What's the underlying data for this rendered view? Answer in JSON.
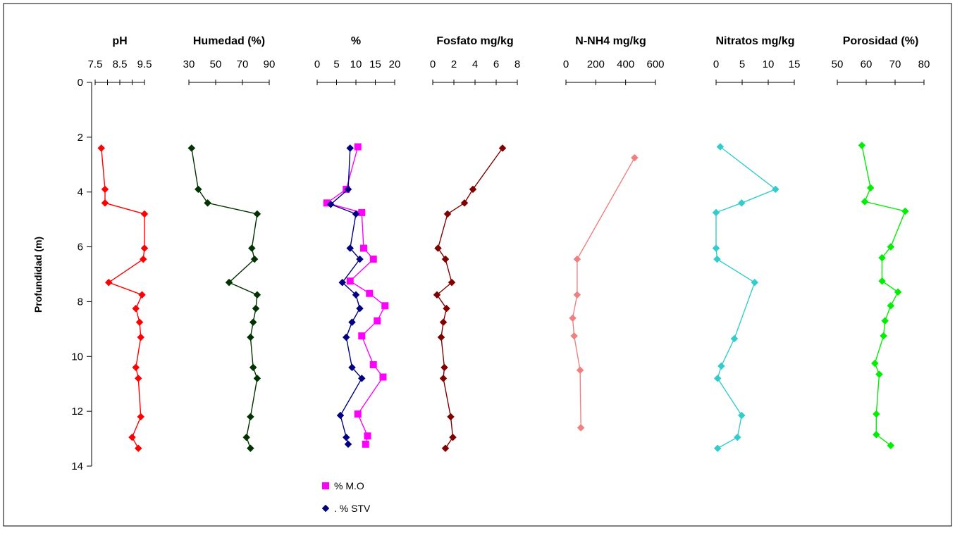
{
  "chart_data": {
    "type": "line",
    "y_axis": {
      "label": "Profundidad (m)",
      "ticks": [
        "0",
        "2",
        "4",
        "6",
        "8",
        "10",
        "12",
        "14"
      ],
      "ylim": [
        0,
        14
      ],
      "inverted": true
    },
    "legend": {
      "position": "bottom-center",
      "items": [
        {
          "label": "% M.O",
          "color": "#FF00FF",
          "marker": "square"
        },
        {
          "label": ". % STV",
          "color": "#000080",
          "marker": "diamond"
        }
      ]
    },
    "panels": [
      {
        "title": "pH",
        "xlim": [
          7.5,
          9.5
        ],
        "tick_values": [
          7.5,
          8.5,
          9.5
        ],
        "tick_labels": [
          "7.5",
          "8.5",
          "9.5"
        ],
        "tick_positions": [
          7.5,
          8.0,
          8.5,
          9.0,
          9.5
        ],
        "series": [
          {
            "color": "#FF0000",
            "marker": "diamond",
            "points": [
              [
                7.75,
                2.4
              ],
              [
                7.9,
                3.9
              ],
              [
                7.9,
                4.4
              ],
              [
                9.5,
                4.8
              ],
              [
                9.5,
                6.05
              ],
              [
                9.45,
                6.45
              ],
              [
                8.05,
                7.3
              ],
              [
                9.4,
                7.75
              ],
              [
                9.15,
                8.25
              ],
              [
                9.3,
                8.75
              ],
              [
                9.35,
                9.3
              ],
              [
                9.15,
                10.4
              ],
              [
                9.25,
                10.8
              ],
              [
                9.35,
                12.2
              ],
              [
                9.0,
                12.95
              ],
              [
                9.25,
                13.35
              ]
            ]
          }
        ]
      },
      {
        "title": "Humedad (%)",
        "xlim": [
          30,
          90
        ],
        "tick_values": [
          30,
          50,
          70,
          90
        ],
        "tick_labels": [
          "30",
          "50",
          "70",
          "90"
        ],
        "tick_positions": [
          30,
          50,
          70,
          90
        ],
        "series": [
          {
            "color": "#003300",
            "marker": "diamond",
            "points": [
              [
                32,
                2.4
              ],
              [
                37,
                3.9
              ],
              [
                44,
                4.4
              ],
              [
                81,
                4.8
              ],
              [
                77,
                6.05
              ],
              [
                79,
                6.45
              ],
              [
                60,
                7.3
              ],
              [
                81,
                7.75
              ],
              [
                80,
                8.25
              ],
              [
                78,
                8.75
              ],
              [
                76,
                9.3
              ],
              [
                78,
                10.4
              ],
              [
                81,
                10.8
              ],
              [
                76,
                12.2
              ],
              [
                73,
                12.95
              ],
              [
                76,
                13.35
              ]
            ]
          }
        ]
      },
      {
        "title": "%",
        "xlim": [
          0,
          20
        ],
        "tick_values": [
          0,
          5,
          10,
          15,
          20
        ],
        "tick_labels": [
          "0",
          "5",
          "10",
          "15",
          "20"
        ],
        "tick_positions": [
          0,
          5,
          10,
          15,
          20
        ],
        "series": [
          {
            "name": "% M.O",
            "color": "#FF00FF",
            "marker": "square",
            "points": [
              [
                10.5,
                2.35
              ],
              [
                7.5,
                3.9
              ],
              [
                2.5,
                4.4
              ],
              [
                11.5,
                4.75
              ],
              [
                12,
                6.05
              ],
              [
                14.5,
                6.45
              ],
              [
                8.5,
                7.25
              ],
              [
                13.5,
                7.7
              ],
              [
                17.5,
                8.15
              ],
              [
                15.5,
                8.7
              ],
              [
                11.5,
                9.25
              ],
              [
                14.5,
                10.3
              ],
              [
                17,
                10.75
              ],
              [
                10.5,
                12.1
              ],
              [
                13,
                12.9
              ],
              [
                12.5,
                13.2
              ]
            ]
          },
          {
            "name": ". % STV",
            "color": "#000080",
            "marker": "diamond",
            "points": [
              [
                8.5,
                2.4
              ],
              [
                8,
                3.9
              ],
              [
                3.5,
                4.45
              ],
              [
                10,
                4.8
              ],
              [
                8.5,
                6.05
              ],
              [
                11,
                6.45
              ],
              [
                6.5,
                7.3
              ],
              [
                10,
                7.75
              ],
              [
                11,
                8.25
              ],
              [
                9,
                8.75
              ],
              [
                7.5,
                9.3
              ],
              [
                9,
                10.4
              ],
              [
                11.5,
                10.8
              ],
              [
                6,
                12.15
              ],
              [
                7.5,
                12.95
              ],
              [
                8,
                13.2
              ]
            ]
          }
        ]
      },
      {
        "title": "Fosfato mg/kg",
        "xlim": [
          0,
          8
        ],
        "tick_values": [
          0,
          2,
          4,
          6,
          8
        ],
        "tick_labels": [
          "0",
          "2",
          "4",
          "6",
          "8"
        ],
        "tick_positions": [
          0,
          2,
          4,
          6,
          8
        ],
        "series": [
          {
            "color": "#800000",
            "marker": "diamond",
            "points": [
              [
                6.6,
                2.4
              ],
              [
                3.8,
                3.9
              ],
              [
                3.0,
                4.4
              ],
              [
                1.4,
                4.8
              ],
              [
                0.5,
                6.05
              ],
              [
                1.2,
                6.45
              ],
              [
                1.8,
                7.3
              ],
              [
                0.4,
                7.75
              ],
              [
                1.3,
                8.25
              ],
              [
                1.0,
                8.75
              ],
              [
                0.8,
                9.3
              ],
              [
                1.1,
                10.4
              ],
              [
                1.0,
                10.8
              ],
              [
                1.7,
                12.2
              ],
              [
                1.9,
                12.95
              ],
              [
                1.2,
                13.35
              ]
            ]
          }
        ]
      },
      {
        "title": "N-NH4 mg/kg",
        "xlim": [
          0,
          600
        ],
        "tick_values": [
          0,
          200,
          400,
          600
        ],
        "tick_labels": [
          "0",
          "200",
          "400",
          "600"
        ],
        "tick_positions": [
          0,
          200,
          400,
          600
        ],
        "series": [
          {
            "color": "#F08080",
            "marker": "diamond",
            "points": [
              [
                460,
                2.75
              ],
              [
                75,
                6.45
              ],
              [
                75,
                7.75
              ],
              [
                45,
                8.6
              ],
              [
                55,
                9.25
              ],
              [
                95,
                10.5
              ],
              [
                100,
                12.6
              ]
            ]
          }
        ]
      },
      {
        "title": "Nitratos mg/kg",
        "xlim": [
          0,
          15
        ],
        "tick_values": [
          0,
          5,
          10,
          15
        ],
        "tick_labels": [
          "0",
          "5",
          "10",
          "15"
        ],
        "tick_positions": [
          0,
          5,
          10,
          15
        ],
        "series": [
          {
            "color": "#33CCCC",
            "marker": "diamond",
            "points": [
              [
                0.8,
                2.35
              ],
              [
                11.4,
                3.9
              ],
              [
                4.9,
                4.4
              ],
              [
                0.0,
                4.75
              ],
              [
                0.0,
                6.05
              ],
              [
                0.2,
                6.45
              ],
              [
                7.4,
                7.3
              ],
              [
                3.5,
                9.35
              ],
              [
                1.0,
                10.35
              ],
              [
                0.3,
                10.8
              ],
              [
                4.9,
                12.15
              ],
              [
                4.1,
                12.95
              ],
              [
                0.3,
                13.35
              ]
            ]
          }
        ]
      },
      {
        "title": "Porosidad (%)",
        "xlim": [
          50,
          80
        ],
        "tick_values": [
          50,
          60,
          70,
          80
        ],
        "tick_labels": [
          "50",
          "60",
          "70",
          "80"
        ],
        "tick_positions": [
          50,
          60,
          70,
          80
        ],
        "series": [
          {
            "color": "#00EE00",
            "marker": "diamond",
            "points": [
              [
                58.5,
                2.3
              ],
              [
                61.5,
                3.85
              ],
              [
                59.5,
                4.35
              ],
              [
                73.5,
                4.7
              ],
              [
                68.5,
                6.0
              ],
              [
                65.5,
                6.4
              ],
              [
                65.5,
                7.25
              ],
              [
                71.0,
                7.65
              ],
              [
                68.5,
                8.15
              ],
              [
                66.5,
                8.7
              ],
              [
                66.0,
                9.25
              ],
              [
                63.0,
                10.25
              ],
              [
                64.5,
                10.65
              ],
              [
                63.5,
                12.1
              ],
              [
                63.5,
                12.85
              ],
              [
                68.5,
                13.25
              ]
            ]
          }
        ]
      }
    ]
  }
}
